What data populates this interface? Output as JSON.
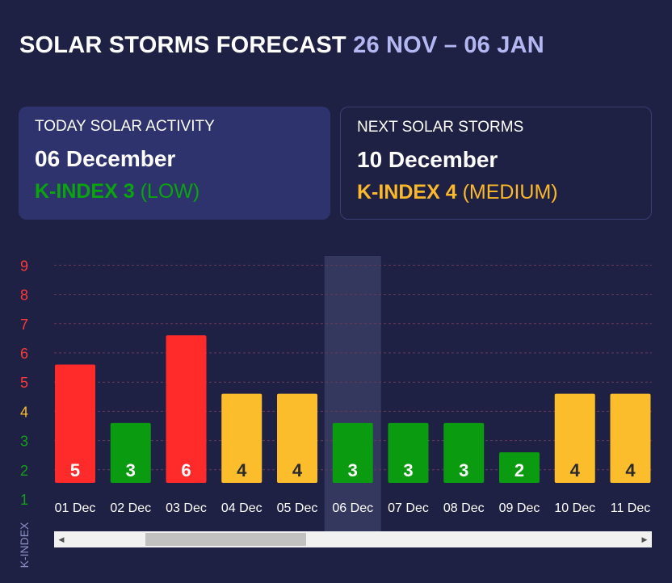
{
  "header": {
    "title": "SOLAR STORMS FORECAST",
    "range": "26 NOV – 06 JAN"
  },
  "today": {
    "label": "TODAY SOLAR ACTIVITY",
    "date": "06 December",
    "k_index": "K-INDEX 3",
    "level": "(LOW)"
  },
  "next": {
    "label": "NEXT SOLAR STORMS",
    "date": "10 December",
    "k_index": "K-INDEX 4",
    "level": "(MEDIUM)"
  },
  "colors": {
    "background": "#1e2044",
    "red": "#ff2b2b",
    "orange": "#fbbd2c",
    "green": "#0a9b10",
    "highlight": "#34375e"
  },
  "chart_data": {
    "type": "bar",
    "ylabel": "K-INDEX",
    "y_ticks": [
      9,
      8,
      7,
      6,
      5,
      4,
      3,
      2,
      1
    ],
    "ylim": [
      1,
      9
    ],
    "grid": true,
    "highlighted_category": "06 Dec",
    "categories": [
      "01 Dec",
      "02 Dec",
      "03 Dec",
      "04 Dec",
      "05 Dec",
      "06 Dec",
      "07 Dec",
      "08 Dec",
      "09 Dec",
      "10 Dec",
      "11 Dec"
    ],
    "values": [
      5,
      3,
      6,
      4,
      4,
      3,
      3,
      3,
      2,
      4,
      4
    ],
    "bar_levels": [
      5.6,
      3.6,
      6.6,
      4.6,
      4.6,
      3.6,
      3.6,
      3.6,
      2.6,
      4.6,
      4.6
    ]
  },
  "scrollbar": {
    "left_arrow": "◀",
    "right_arrow": "▶"
  }
}
